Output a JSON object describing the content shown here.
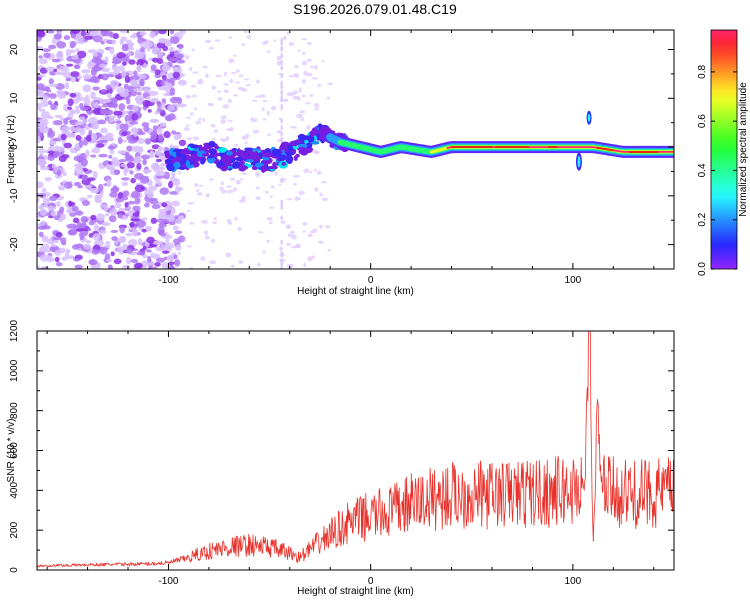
{
  "title": "S196.2026.079.01.48.C19",
  "chart_data": [
    {
      "type": "heatmap",
      "name": "spectrogram",
      "xlabel": "Height of straight line (km)",
      "ylabel": "Frequency (Hz)",
      "xlim": [
        -165,
        150
      ],
      "ylim": [
        -25,
        24
      ],
      "xticks": [
        -100,
        0,
        100
      ],
      "yticks": [
        -20,
        -10,
        0,
        10,
        20
      ],
      "colorbar": {
        "label": "Normalized spectral amplitude",
        "range": [
          0,
          0.97
        ],
        "ticks": [
          0.0,
          0.2,
          0.4,
          0.6,
          0.8
        ]
      },
      "ridge": [
        {
          "x": -100,
          "y": -3
        },
        {
          "x": -90,
          "y": -2
        },
        {
          "x": -80,
          "y": -1
        },
        {
          "x": -70,
          "y": -3
        },
        {
          "x": -60,
          "y": -2
        },
        {
          "x": -50,
          "y": -3
        },
        {
          "x": -40,
          "y": -1
        },
        {
          "x": -30,
          "y": 1
        },
        {
          "x": -25,
          "y": 3
        },
        {
          "x": -15,
          "y": 1
        },
        {
          "x": -5,
          "y": 0
        },
        {
          "x": 5,
          "y": -1
        },
        {
          "x": 15,
          "y": 0
        },
        {
          "x": 30,
          "y": -1
        },
        {
          "x": 40,
          "y": 0
        },
        {
          "x": 100,
          "y": 0
        },
        {
          "x": 110,
          "y": 0
        },
        {
          "x": 125,
          "y": -1
        },
        {
          "x": 148,
          "y": -1
        }
      ]
    },
    {
      "type": "line",
      "name": "snr",
      "xlabel": "Height of straight line (km)",
      "ylabel": "SNR (10 * v/v)",
      "xlim": [
        -165,
        150
      ],
      "ylim": [
        0,
        1200
      ],
      "xticks": [
        -100,
        0,
        100
      ],
      "yticks": [
        0,
        200,
        400,
        600,
        800,
        1000,
        1200
      ],
      "color": "#e8312a",
      "series": [
        {
          "x": -165,
          "y": 20
        },
        {
          "x": -140,
          "y": 25
        },
        {
          "x": -110,
          "y": 30
        },
        {
          "x": -100,
          "y": 35
        },
        {
          "x": -90,
          "y": 60
        },
        {
          "x": -80,
          "y": 90
        },
        {
          "x": -70,
          "y": 110
        },
        {
          "x": -60,
          "y": 120
        },
        {
          "x": -50,
          "y": 110
        },
        {
          "x": -40,
          "y": 80
        },
        {
          "x": -35,
          "y": 60
        },
        {
          "x": -30,
          "y": 100
        },
        {
          "x": -20,
          "y": 170
        },
        {
          "x": -10,
          "y": 230
        },
        {
          "x": 0,
          "y": 260
        },
        {
          "x": 10,
          "y": 280
        },
        {
          "x": 20,
          "y": 320
        },
        {
          "x": 30,
          "y": 340
        },
        {
          "x": 40,
          "y": 360
        },
        {
          "x": 60,
          "y": 360
        },
        {
          "x": 80,
          "y": 370
        },
        {
          "x": 100,
          "y": 380
        },
        {
          "x": 106,
          "y": 420
        },
        {
          "x": 108,
          "y": 1200
        },
        {
          "x": 110,
          "y": 100
        },
        {
          "x": 112,
          "y": 700
        },
        {
          "x": 115,
          "y": 380
        },
        {
          "x": 130,
          "y": 360
        },
        {
          "x": 150,
          "y": 380
        }
      ]
    }
  ]
}
